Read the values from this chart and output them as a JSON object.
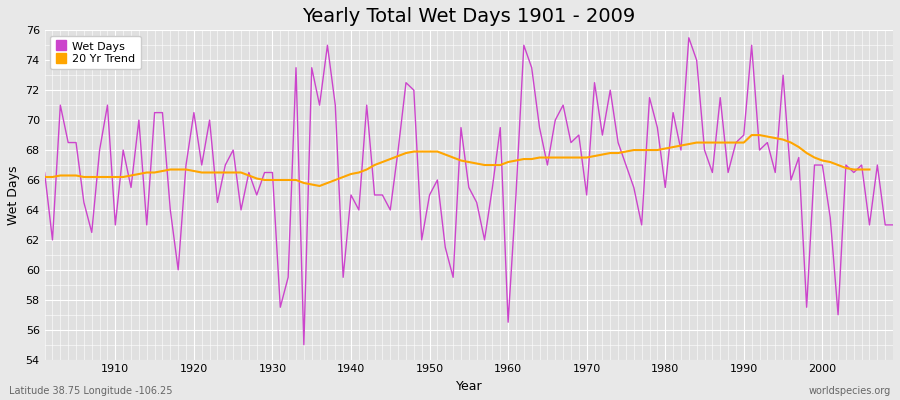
{
  "title": "Yearly Total Wet Days 1901 - 2009",
  "xlabel": "Year",
  "ylabel": "Wet Days",
  "lat_lon_label": "Latitude 38.75 Longitude -106.25",
  "watermark": "worldspecies.org",
  "ylim": [
    54,
    76
  ],
  "yticks": [
    54,
    56,
    58,
    60,
    62,
    64,
    66,
    68,
    70,
    72,
    74,
    76
  ],
  "xlim": [
    1901,
    2009
  ],
  "wet_days_color": "#CC44CC",
  "trend_color": "#FFA500",
  "fig_bg_color": "#E8E8E8",
  "plot_bg_color": "#E0E0E0",
  "grid_color": "#FFFFFF",
  "years": [
    1901,
    1902,
    1903,
    1904,
    1905,
    1906,
    1907,
    1908,
    1909,
    1910,
    1911,
    1912,
    1913,
    1914,
    1915,
    1916,
    1917,
    1918,
    1919,
    1920,
    1921,
    1922,
    1923,
    1924,
    1925,
    1926,
    1927,
    1928,
    1929,
    1930,
    1931,
    1932,
    1933,
    1934,
    1935,
    1936,
    1937,
    1938,
    1939,
    1940,
    1941,
    1942,
    1943,
    1944,
    1945,
    1946,
    1947,
    1948,
    1949,
    1950,
    1951,
    1952,
    1953,
    1954,
    1955,
    1956,
    1957,
    1958,
    1959,
    1960,
    1961,
    1962,
    1963,
    1964,
    1965,
    1966,
    1967,
    1968,
    1969,
    1970,
    1971,
    1972,
    1973,
    1974,
    1975,
    1976,
    1977,
    1978,
    1979,
    1980,
    1981,
    1982,
    1983,
    1984,
    1985,
    1986,
    1987,
    1988,
    1989,
    1990,
    1991,
    1992,
    1993,
    1994,
    1995,
    1996,
    1997,
    1998,
    1999,
    2000,
    2001,
    2002,
    2003,
    2004,
    2005,
    2006,
    2007,
    2008,
    2009
  ],
  "wet_days": [
    66.5,
    62.0,
    71.0,
    68.5,
    68.5,
    64.5,
    62.5,
    68.0,
    71.0,
    63.0,
    68.0,
    65.5,
    70.0,
    63.0,
    70.5,
    70.5,
    64.0,
    60.0,
    67.0,
    70.5,
    67.0,
    70.0,
    64.5,
    67.0,
    68.0,
    64.0,
    66.5,
    65.0,
    66.5,
    66.5,
    57.5,
    59.5,
    73.5,
    55.0,
    73.5,
    71.0,
    75.0,
    71.0,
    59.5,
    65.0,
    64.0,
    71.0,
    65.0,
    65.0,
    64.0,
    68.0,
    72.5,
    72.0,
    62.0,
    65.0,
    66.0,
    61.5,
    59.5,
    69.5,
    65.5,
    64.5,
    62.0,
    65.5,
    69.5,
    56.5,
    65.0,
    75.0,
    73.5,
    69.5,
    67.0,
    70.0,
    71.0,
    68.5,
    69.0,
    65.0,
    72.5,
    69.0,
    72.0,
    68.5,
    67.0,
    65.5,
    63.0,
    71.5,
    69.5,
    65.5,
    70.5,
    68.0,
    75.5,
    74.0,
    68.0,
    66.5,
    71.5,
    66.5,
    68.5,
    69.0,
    75.0,
    68.0,
    68.5,
    66.5,
    73.0,
    66.0,
    67.5,
    57.5,
    67.0,
    67.0,
    63.5,
    57.0,
    67.0,
    66.5,
    67.0,
    63.0,
    67.0,
    63.0,
    63.0
  ],
  "trend": [
    66.2,
    66.2,
    66.3,
    66.3,
    66.3,
    66.2,
    66.2,
    66.2,
    66.2,
    66.2,
    66.2,
    66.3,
    66.4,
    66.5,
    66.5,
    66.6,
    66.7,
    66.7,
    66.7,
    66.6,
    66.5,
    66.5,
    66.5,
    66.5,
    66.5,
    66.5,
    66.3,
    66.1,
    66.0,
    66.0,
    66.0,
    66.0,
    66.0,
    65.8,
    65.7,
    65.6,
    65.8,
    66.0,
    66.2,
    66.4,
    66.5,
    66.7,
    67.0,
    67.2,
    67.4,
    67.6,
    67.8,
    67.9,
    67.9,
    67.9,
    67.9,
    67.7,
    67.5,
    67.3,
    67.2,
    67.1,
    67.0,
    67.0,
    67.0,
    67.2,
    67.3,
    67.4,
    67.4,
    67.5,
    67.5,
    67.5,
    67.5,
    67.5,
    67.5,
    67.5,
    67.6,
    67.7,
    67.8,
    67.8,
    67.9,
    68.0,
    68.0,
    68.0,
    68.0,
    68.1,
    68.2,
    68.3,
    68.4,
    68.5,
    68.5,
    68.5,
    68.5,
    68.5,
    68.5,
    68.5,
    69.0,
    69.0,
    68.9,
    68.8,
    68.7,
    68.5,
    68.2,
    67.8,
    67.5,
    67.3,
    67.2,
    67.0,
    66.8,
    66.7,
    66.7,
    66.7,
    null,
    null,
    null
  ],
  "title_fontsize": 14,
  "axis_label_fontsize": 9,
  "tick_fontsize": 8,
  "legend_fontsize": 8
}
